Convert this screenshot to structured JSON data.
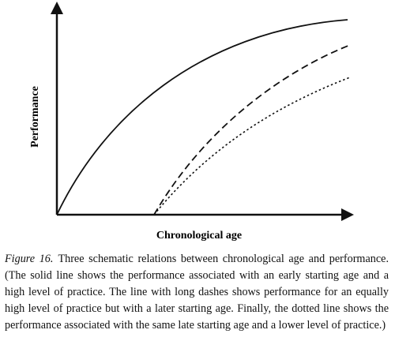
{
  "figure": {
    "y_axis_label": "Performance",
    "x_axis_label": "Chronological age"
  },
  "caption": {
    "label": "Figure 16.",
    "text": "Three schematic relations between chronological age and performance. (The solid line shows the performance associated with an early starting age and a high level of practice. The line with long dashes shows performance for an equally high level of practice but with a later starting age. Finally, the dotted line shows the performance associated with the same late starting age and a lower level of practice.)"
  }
}
